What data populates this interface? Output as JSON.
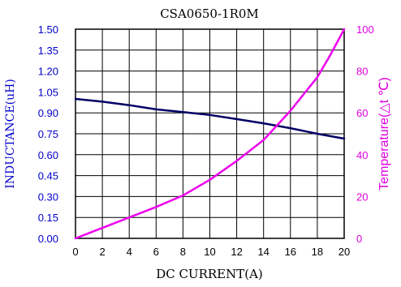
{
  "chart_data": {
    "type": "line",
    "title": "CSA0650-1R0M",
    "xlabel": "DC CURRENT(A)",
    "ylabel_left": "INDUCTANCE(uH)",
    "ylabel_right": "Temperature(△t ℃)",
    "xlim": [
      0,
      20
    ],
    "ylim_left": [
      0,
      1.5
    ],
    "ylim_right": [
      0,
      100
    ],
    "x_ticks": [
      "0",
      "2",
      "4",
      "6",
      "8",
      "10",
      "12",
      "14",
      "16",
      "18",
      "20"
    ],
    "y_ticks_left": [
      "0.00",
      "0.15",
      "0.30",
      "0.45",
      "0.60",
      "0.75",
      "0.90",
      "1.05",
      "1.20",
      "1.35",
      "1.50"
    ],
    "y_ticks_right": [
      "0",
      "20",
      "40",
      "60",
      "80",
      "100"
    ],
    "grid": true,
    "colors": {
      "inductance": "#000066",
      "temperature": "#ee00ee",
      "left_axis_text": "#0000cc",
      "right_axis_text": "#e000e0"
    },
    "series": [
      {
        "axis": "left",
        "x": [
          0,
          2,
          4,
          6,
          8,
          10,
          12,
          14,
          16,
          18,
          20
        ],
        "values": [
          1.0,
          0.98,
          0.955,
          0.925,
          0.905,
          0.885,
          0.855,
          0.825,
          0.79,
          0.75,
          0.715
        ]
      },
      {
        "axis": "right",
        "x": [
          0,
          2,
          4,
          6,
          8,
          10,
          12,
          14,
          16,
          17,
          18,
          19,
          20
        ],
        "values": [
          0,
          5,
          10,
          15,
          20.5,
          28,
          37,
          47,
          61,
          69,
          77,
          88,
          100
        ]
      }
    ]
  }
}
